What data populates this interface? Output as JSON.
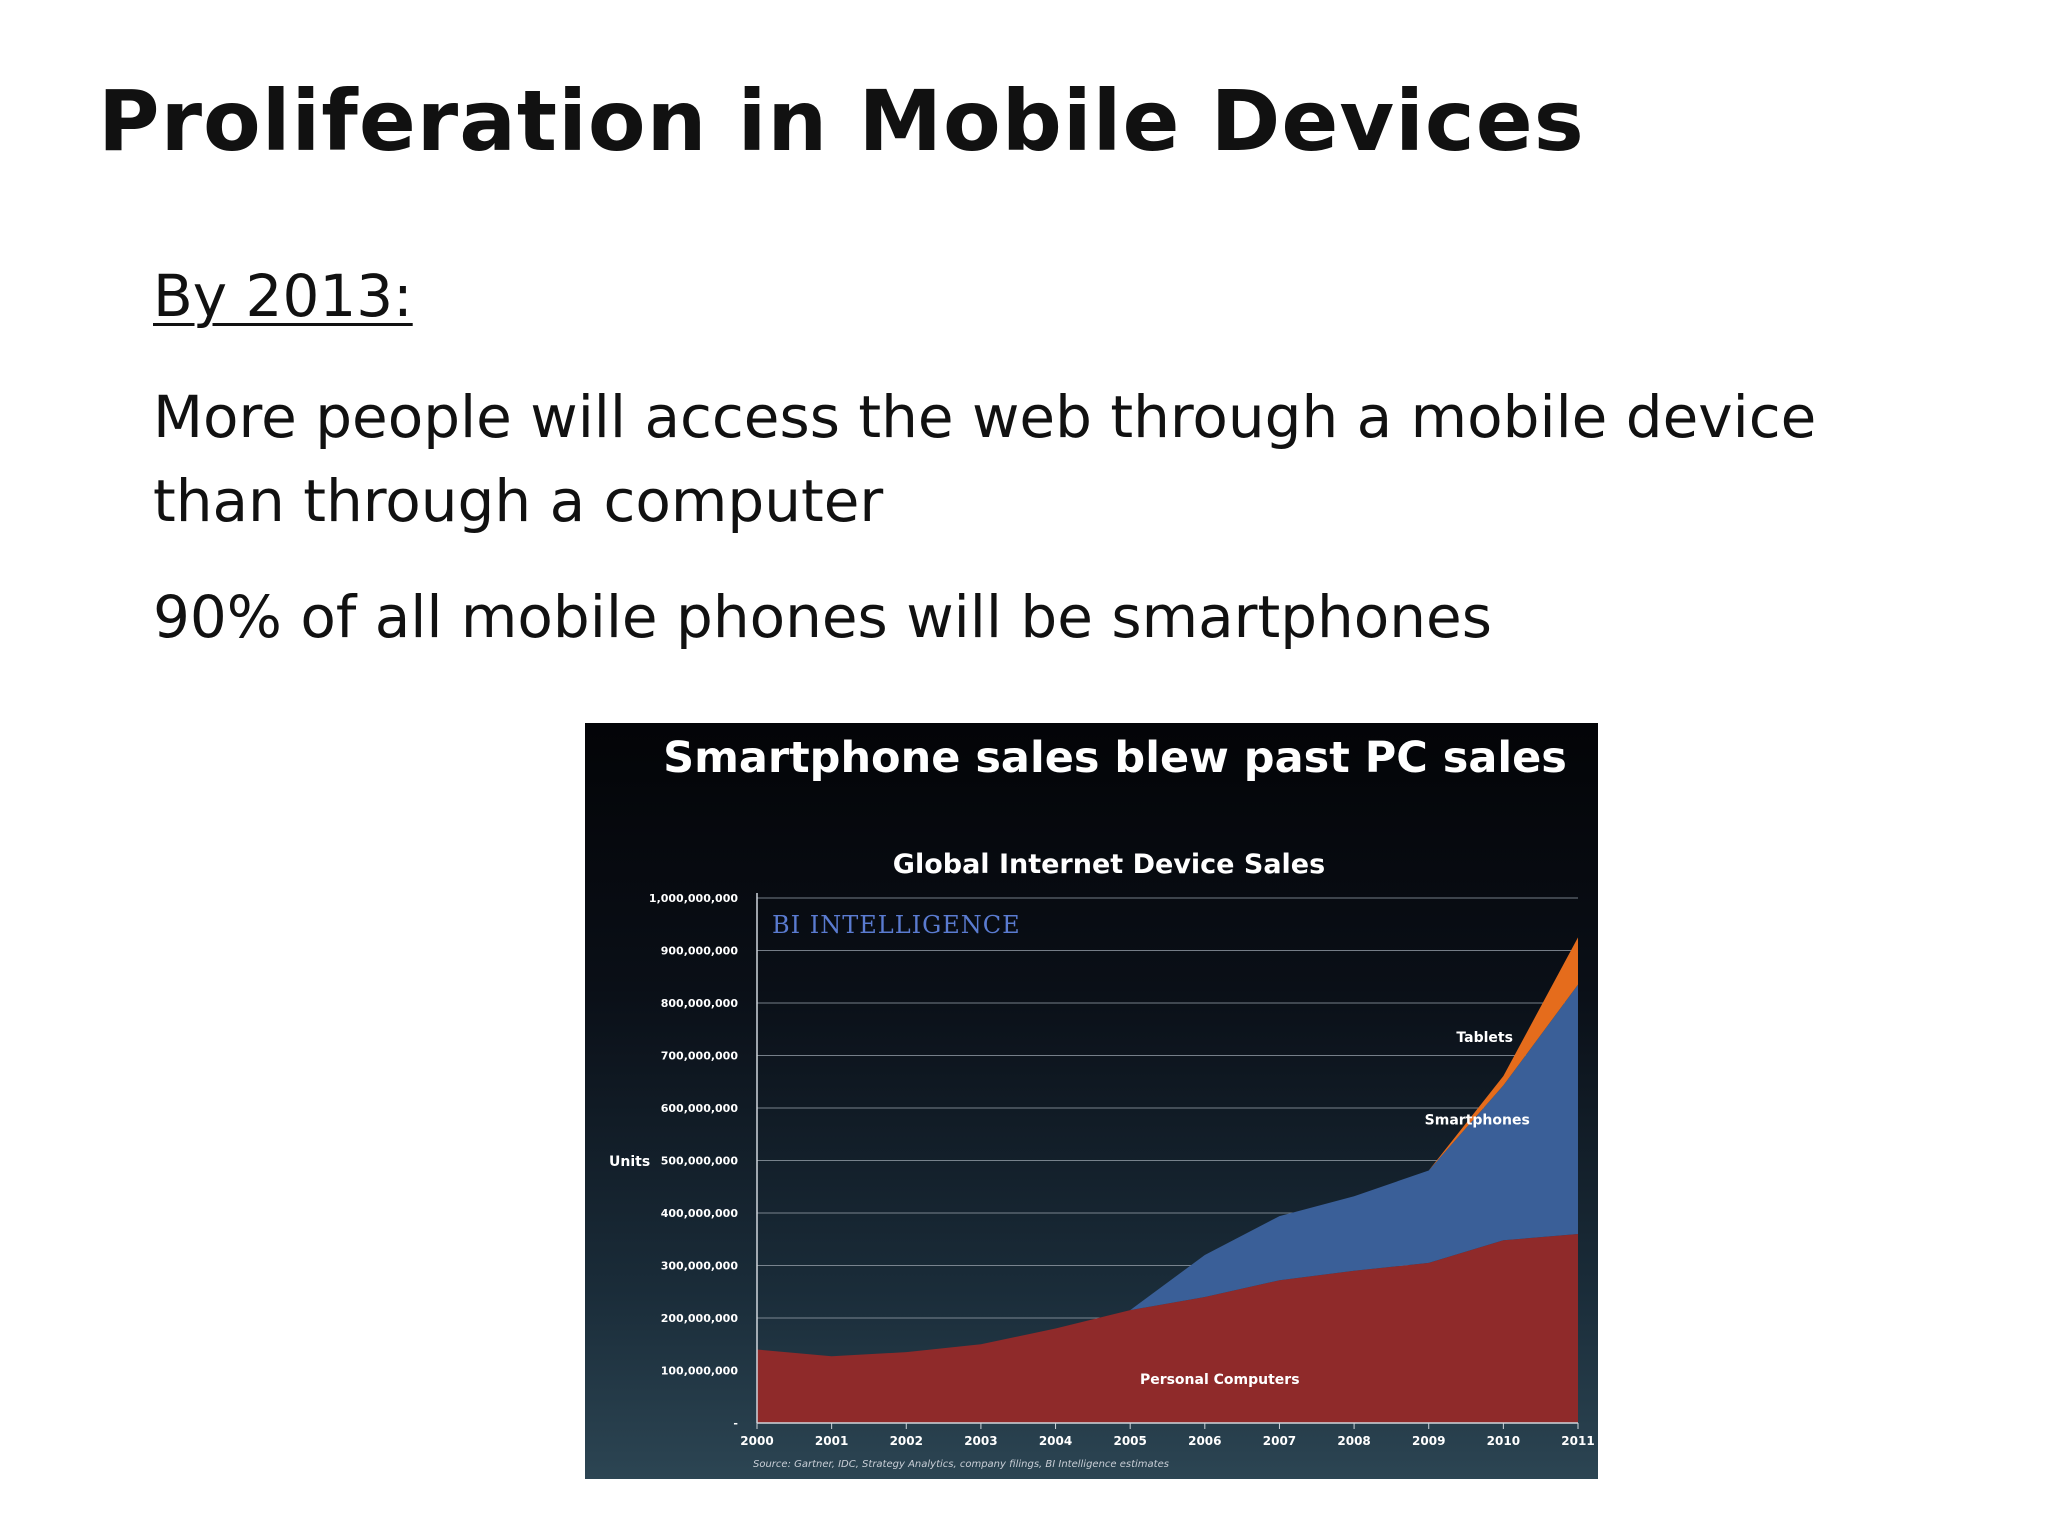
{
  "slide": {
    "title": "Proliferation in Mobile Devices",
    "subhead": "By 2013:",
    "bullets": [
      "More people will access the web through a mobile device than through a computer",
      "90% of all mobile phones will be smartphones"
    ]
  },
  "chart_data": {
    "type": "area",
    "stacked": true,
    "headline": "Smartphone sales blew past PC sales",
    "title": "Global Internet Device Sales",
    "watermark": "BI INTELLIGENCE",
    "ylabel": "Units",
    "xlabel": "",
    "ylim": [
      0,
      1000000000
    ],
    "yticks": [
      "-",
      "100,000,000",
      "200,000,000",
      "300,000,000",
      "400,000,000",
      "500,000,000",
      "600,000,000",
      "700,000,000",
      "800,000,000",
      "900,000,000",
      "1,000,000,000"
    ],
    "x": [
      "2000",
      "2001",
      "2002",
      "2003",
      "2004",
      "2005",
      "2006",
      "2007",
      "2008",
      "2009",
      "2010",
      "2011"
    ],
    "series": [
      {
        "name": "Personal Computers",
        "color": "#8f2a2a",
        "values": [
          140000000,
          127000000,
          135000000,
          150000000,
          180000000,
          215000000,
          240000000,
          272000000,
          290000000,
          305000000,
          348000000,
          360000000
        ]
      },
      {
        "name": "Smartphones",
        "color": "#3a5f98",
        "values": [
          0,
          0,
          0,
          0,
          0,
          0,
          80000000,
          122000000,
          142000000,
          176000000,
          295000000,
          475000000
        ]
      },
      {
        "name": "Tablets",
        "color": "#e56c1c",
        "values": [
          0,
          0,
          0,
          0,
          0,
          0,
          0,
          0,
          0,
          0,
          18000000,
          90000000
        ]
      }
    ],
    "source": "Source: Gartner, IDC, Strategy Analytics, company filings, BI Intelligence estimates",
    "grid": true,
    "watermark_color": "#5a7bd0"
  }
}
